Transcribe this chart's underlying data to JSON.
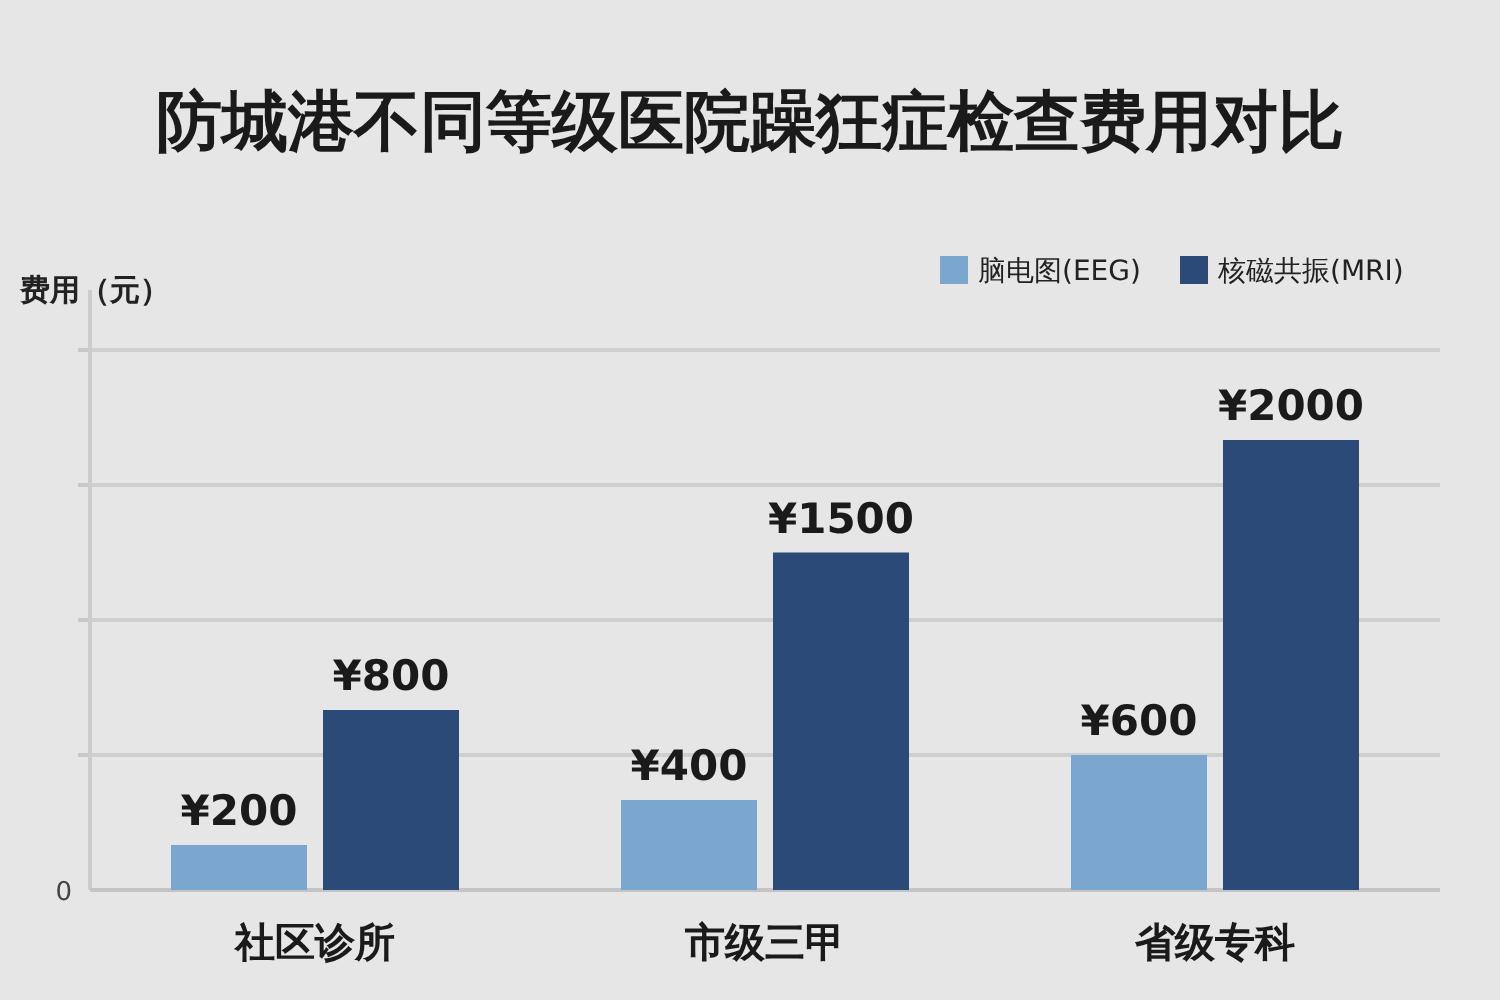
{
  "chart_data": {
    "type": "bar",
    "title": "防城港不同等级医院躁狂症检查费用对比",
    "ylabel": "费用（元）",
    "categories": [
      "社区诊所",
      "市级三甲",
      "省级专科"
    ],
    "series": [
      {
        "name": "脑电图(EEG)",
        "color": "#7ba7cf",
        "values": [
          200,
          400,
          600
        ],
        "value_labels": [
          "¥200",
          "¥400",
          "¥600"
        ]
      },
      {
        "name": "核磁共振(MRI)",
        "color": "#2b4a78",
        "values": [
          800,
          1500,
          2000
        ],
        "value_labels": [
          "¥800",
          "¥1500",
          "¥2000"
        ]
      }
    ],
    "annotations": [
      "0"
    ],
    "grid": "y",
    "legend": "top right"
  }
}
